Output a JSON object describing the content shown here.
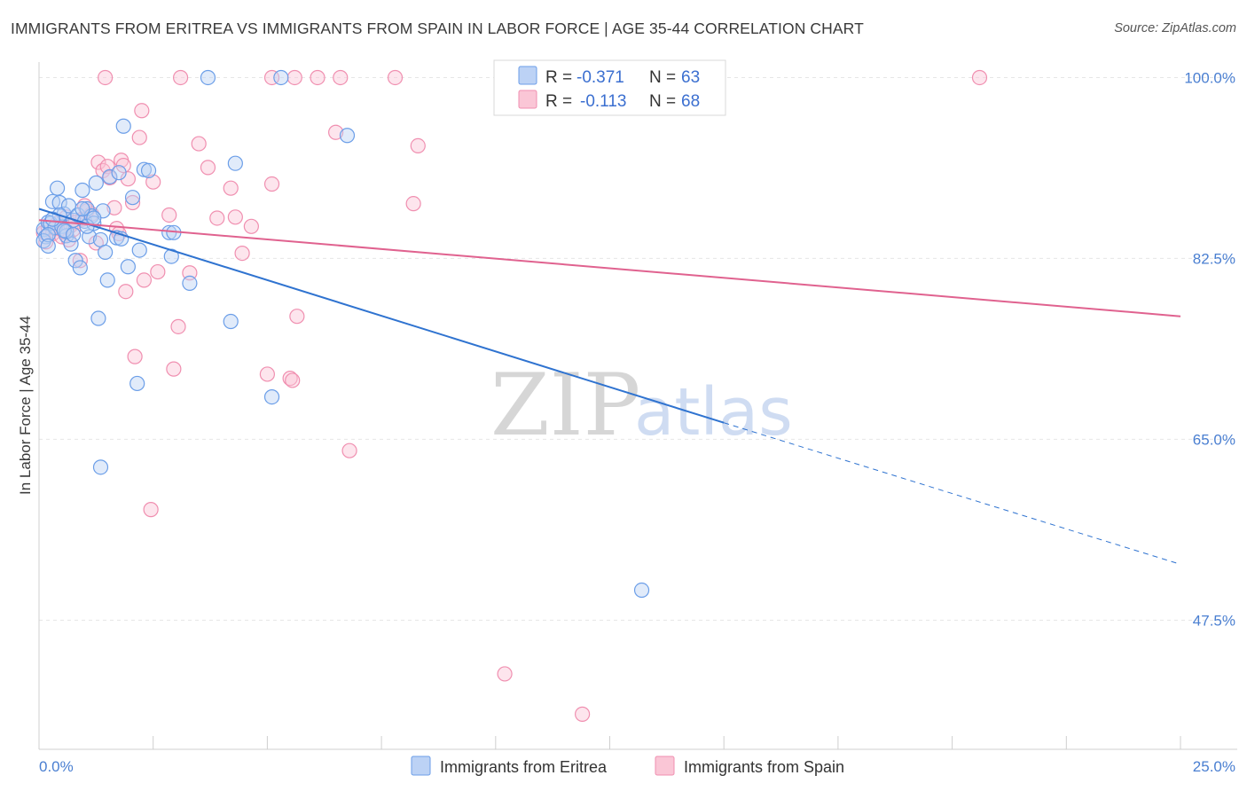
{
  "title": "IMMIGRANTS FROM ERITREA VS IMMIGRANTS FROM SPAIN IN LABOR FORCE | AGE 35-44 CORRELATION CHART",
  "source": "Source: ZipAtlas.com",
  "watermark": {
    "zip": "ZIP",
    "atlas": "atlas"
  },
  "legend": {
    "r_label": "R =",
    "n_label": "N =",
    "rows": [
      {
        "r": "-0.371",
        "n": "63"
      },
      {
        "r": "-0.113",
        "n": "68"
      }
    ]
  },
  "chart_data": {
    "type": "scatter",
    "title": "IMMIGRANTS FROM ERITREA VS IMMIGRANTS FROM SPAIN IN LABOR FORCE | AGE 35-44 CORRELATION CHART",
    "xlabel": "",
    "ylabel": "In Labor Force | Age 35-44",
    "xlim": [
      0,
      25
    ],
    "ylim": [
      35,
      101.5
    ],
    "x_tick_labels": [
      "0.0%",
      "25.0%"
    ],
    "y_ticks": [
      47.5,
      65.0,
      82.5,
      100.0
    ],
    "y_tick_labels": [
      "47.5%",
      "65.0%",
      "82.5%",
      "100.0%"
    ],
    "grid": true,
    "legend_position": "top-center",
    "series": [
      {
        "name": "Immigrants from Eritrea",
        "color": "#6b9ee8",
        "r": -0.371,
        "n": 63,
        "trend": {
          "x0": 0,
          "y0": 87.3,
          "x1": 15,
          "y1": 66.6,
          "dashed_to_x": 25,
          "dashed_to_y": 52.9
        },
        "points": [
          [
            0.1,
            85.3
          ],
          [
            0.15,
            84.6
          ],
          [
            0.2,
            86.0
          ],
          [
            0.25,
            85.9
          ],
          [
            0.3,
            88.0
          ],
          [
            0.35,
            85.5
          ],
          [
            0.4,
            89.3
          ],
          [
            0.45,
            87.9
          ],
          [
            0.5,
            85.6
          ],
          [
            0.55,
            86.8
          ],
          [
            0.6,
            84.7
          ],
          [
            0.65,
            87.6
          ],
          [
            0.7,
            83.9
          ],
          [
            0.75,
            86.2
          ],
          [
            0.8,
            82.3
          ],
          [
            0.85,
            86.7
          ],
          [
            0.9,
            81.6
          ],
          [
            0.95,
            89.1
          ],
          [
            1.0,
            86.1
          ],
          [
            1.05,
            87.3
          ],
          [
            1.1,
            84.6
          ],
          [
            1.15,
            86.6
          ],
          [
            1.2,
            85.9
          ],
          [
            1.25,
            89.8
          ],
          [
            1.3,
            76.7
          ],
          [
            1.35,
            84.3
          ],
          [
            1.4,
            87.1
          ],
          [
            1.45,
            83.1
          ],
          [
            1.5,
            80.4
          ],
          [
            1.55,
            90.4
          ],
          [
            1.7,
            84.5
          ],
          [
            1.75,
            90.8
          ],
          [
            1.85,
            95.3
          ],
          [
            1.95,
            81.7
          ],
          [
            2.05,
            88.4
          ],
          [
            2.2,
            83.3
          ],
          [
            2.3,
            91.1
          ],
          [
            2.4,
            91.0
          ],
          [
            2.85,
            85.0
          ],
          [
            2.9,
            82.7
          ],
          [
            2.95,
            85.0
          ],
          [
            3.3,
            80.1
          ],
          [
            3.7,
            100.0
          ],
          [
            4.2,
            76.4
          ],
          [
            4.3,
            91.7
          ],
          [
            5.1,
            69.1
          ],
          [
            5.3,
            100.0
          ],
          [
            6.75,
            94.4
          ],
          [
            0.1,
            84.2
          ],
          [
            0.2,
            84.8
          ],
          [
            0.45,
            86.7
          ],
          [
            0.6,
            85.1
          ],
          [
            1.05,
            85.6
          ],
          [
            1.2,
            86.4
          ],
          [
            1.8,
            84.4
          ],
          [
            2.15,
            70.4
          ],
          [
            0.3,
            86.3
          ],
          [
            0.55,
            85.2
          ],
          [
            0.75,
            84.8
          ],
          [
            0.95,
            87.3
          ],
          [
            1.35,
            62.3
          ],
          [
            13.2,
            50.4
          ],
          [
            0.2,
            83.7
          ]
        ]
      },
      {
        "name": "Immigrants from Spain",
        "color": "#f08fb0",
        "r": -0.113,
        "n": 68,
        "trend": {
          "x0": 0,
          "y0": 86.2,
          "x1": 25,
          "y1": 76.9
        },
        "points": [
          [
            0.1,
            85.0
          ],
          [
            0.2,
            85.5
          ],
          [
            0.3,
            84.9
          ],
          [
            0.35,
            85.4
          ],
          [
            0.4,
            85.9
          ],
          [
            0.5,
            84.6
          ],
          [
            0.55,
            85.1
          ],
          [
            0.6,
            86.5
          ],
          [
            0.65,
            84.3
          ],
          [
            0.7,
            85.7
          ],
          [
            0.8,
            86.0
          ],
          [
            0.9,
            82.3
          ],
          [
            0.95,
            86.3
          ],
          [
            1.05,
            87.1
          ],
          [
            1.15,
            86.8
          ],
          [
            1.25,
            84.0
          ],
          [
            1.3,
            91.8
          ],
          [
            1.4,
            91.0
          ],
          [
            1.5,
            91.4
          ],
          [
            1.55,
            90.3
          ],
          [
            1.65,
            87.4
          ],
          [
            1.7,
            85.4
          ],
          [
            1.75,
            84.9
          ],
          [
            1.8,
            92.0
          ],
          [
            1.85,
            91.5
          ],
          [
            1.9,
            79.3
          ],
          [
            1.95,
            90.2
          ],
          [
            2.05,
            87.9
          ],
          [
            2.1,
            73.0
          ],
          [
            2.2,
            94.2
          ],
          [
            2.25,
            96.8
          ],
          [
            2.3,
            80.4
          ],
          [
            2.45,
            58.2
          ],
          [
            2.5,
            89.9
          ],
          [
            2.6,
            81.2
          ],
          [
            2.85,
            86.7
          ],
          [
            2.95,
            71.8
          ],
          [
            3.05,
            75.9
          ],
          [
            3.3,
            81.1
          ],
          [
            3.5,
            93.6
          ],
          [
            3.7,
            91.3
          ],
          [
            3.9,
            86.4
          ],
          [
            4.2,
            89.3
          ],
          [
            4.3,
            86.5
          ],
          [
            4.45,
            83.0
          ],
          [
            4.65,
            85.6
          ],
          [
            5.0,
            71.3
          ],
          [
            5.1,
            89.7
          ],
          [
            5.5,
            70.9
          ],
          [
            5.55,
            70.7
          ],
          [
            5.65,
            76.9
          ],
          [
            6.5,
            94.7
          ],
          [
            6.8,
            63.9
          ],
          [
            7.8,
            100.0
          ],
          [
            8.2,
            87.8
          ],
          [
            8.3,
            93.4
          ],
          [
            20.6,
            100.0
          ],
          [
            1.45,
            100.0
          ],
          [
            3.1,
            100.0
          ],
          [
            5.1,
            100.0
          ],
          [
            5.6,
            100.0
          ],
          [
            6.1,
            100.0
          ],
          [
            6.6,
            100.0
          ],
          [
            10.2,
            42.3
          ],
          [
            11.9,
            38.4
          ],
          [
            0.15,
            84.1
          ],
          [
            0.75,
            85.3
          ],
          [
            1.0,
            87.6
          ]
        ]
      }
    ]
  }
}
